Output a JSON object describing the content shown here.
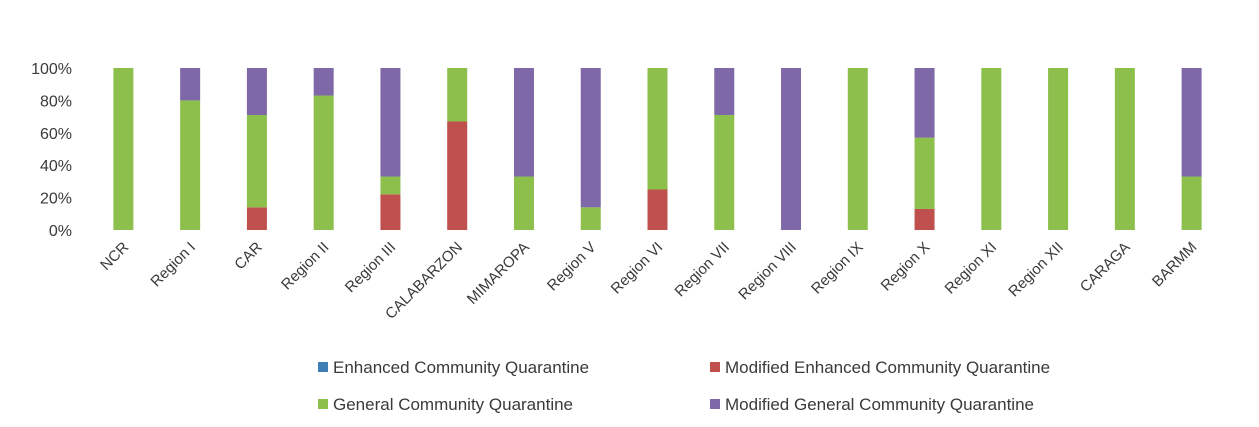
{
  "chart_data": {
    "type": "bar",
    "stacked": true,
    "percent_stacked": true,
    "title": "",
    "xlabel": "",
    "ylabel": "",
    "ylim": [
      0,
      100
    ],
    "y_ticks": [
      "0%",
      "20%",
      "40%",
      "60%",
      "80%",
      "100%"
    ],
    "grid": false,
    "legend_position": "bottom",
    "categories": [
      "NCR",
      "Region I",
      "CAR",
      "Region II",
      "Region III",
      "CALABARZON",
      "MIMAROPA",
      "Region V",
      "Region VI",
      "Region VII",
      "Region VIII",
      "Region IX",
      "Region X",
      "Region XI",
      "Region XII",
      "CARAGA",
      "BARMM"
    ],
    "series": [
      {
        "name": "Enhanced Community Quarantine",
        "color": "#3d7fb5",
        "values": [
          0,
          0,
          0,
          0,
          0,
          0,
          0,
          0,
          0,
          0,
          0,
          0,
          0,
          0,
          0,
          0,
          0
        ]
      },
      {
        "name": "Modified Enhanced Community Quarantine",
        "color": "#c0504d",
        "values": [
          0,
          0,
          14,
          0,
          22,
          67,
          0,
          0,
          25,
          0,
          0,
          0,
          13,
          0,
          0,
          0,
          0
        ]
      },
      {
        "name": "General Community Quarantine",
        "color": "#8cbf4c",
        "values": [
          100,
          80,
          57,
          83,
          11,
          33,
          33,
          14,
          75,
          71,
          0,
          100,
          44,
          100,
          100,
          100,
          33
        ]
      },
      {
        "name": "Modified General Community Quarantine",
        "color": "#7f68a8",
        "values": [
          0,
          20,
          29,
          17,
          67,
          0,
          67,
          86,
          0,
          29,
          100,
          0,
          43,
          0,
          0,
          0,
          67
        ]
      }
    ]
  }
}
